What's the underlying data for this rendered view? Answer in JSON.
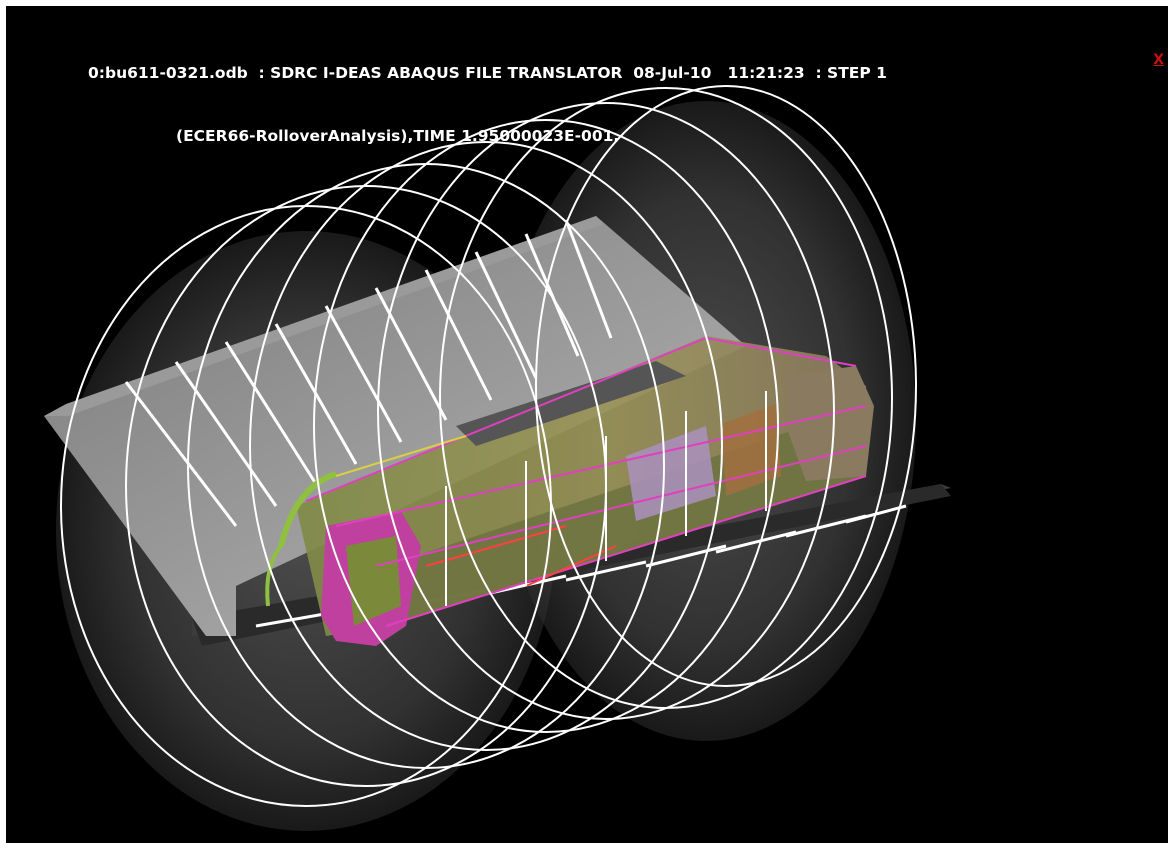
{
  "viewport": {
    "header_line_1": "0:bu611-0321.odb  : SDRC I-DEAS ABAQUS FILE TRANSLATOR  08-Jul-10   11:21:23  : STEP 1",
    "header_line_2": "(ECER66-RolloverAnalysis),TIME 1.95000023E-001,",
    "close_label": "X"
  },
  "colors": {
    "background": "#000000",
    "text": "#ffffff",
    "close": "#cc1010",
    "ring": "#ffffff",
    "ground": "#8c8c8c",
    "ditch": "#3a3a3a",
    "body_olive": "#8c8a52",
    "frame_magenta": "#e040c0",
    "frame_yellow": "#d8d040",
    "front_pink": "#c040a0",
    "front_green": "#90c040"
  },
  "scene": {
    "description_icon": "bus-rollover-model-icon",
    "ring_count": 8
  }
}
